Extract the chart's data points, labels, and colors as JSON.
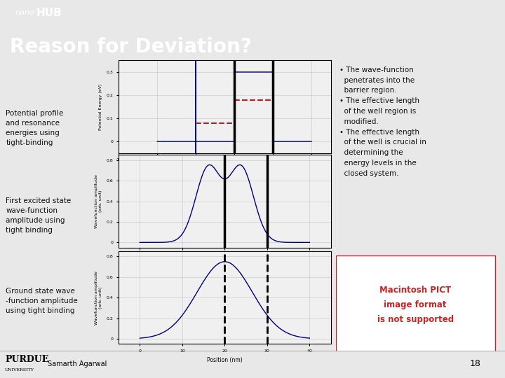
{
  "title": "Reason for Deviation?",
  "title_bg": "#3a3a3a",
  "title_color": "#ffffff",
  "title_fontsize": 20,
  "header_bg": "#1a3a4a",
  "slide_bg": "#e8e8e8",
  "left_labels": [
    "Potential profile\nand resonance\nenergies using\ntight-binding",
    "First excited state\nwave-function\namplitude using\ntight binding",
    "Ground state wave\n-function amplitude\nusing tight binding"
  ],
  "bullet_text": "• The wave-function\n  penetrates into the\n  barrier region.\n• The effective length\n  of the well region is\n  modified.\n• The effective length\n  of the well is crucial in\n  determining the\n  energy levels in the\n  closed system.",
  "macintosh_text": "Macintosh PICT\nimage format\nis not supported",
  "macintosh_color": "#cc2222",
  "footer_text": "Samarth Agarwal",
  "page_number": "18",
  "plot_area_bg": "#f0f0f0",
  "resonance1": 0.18,
  "resonance2": 0.08
}
